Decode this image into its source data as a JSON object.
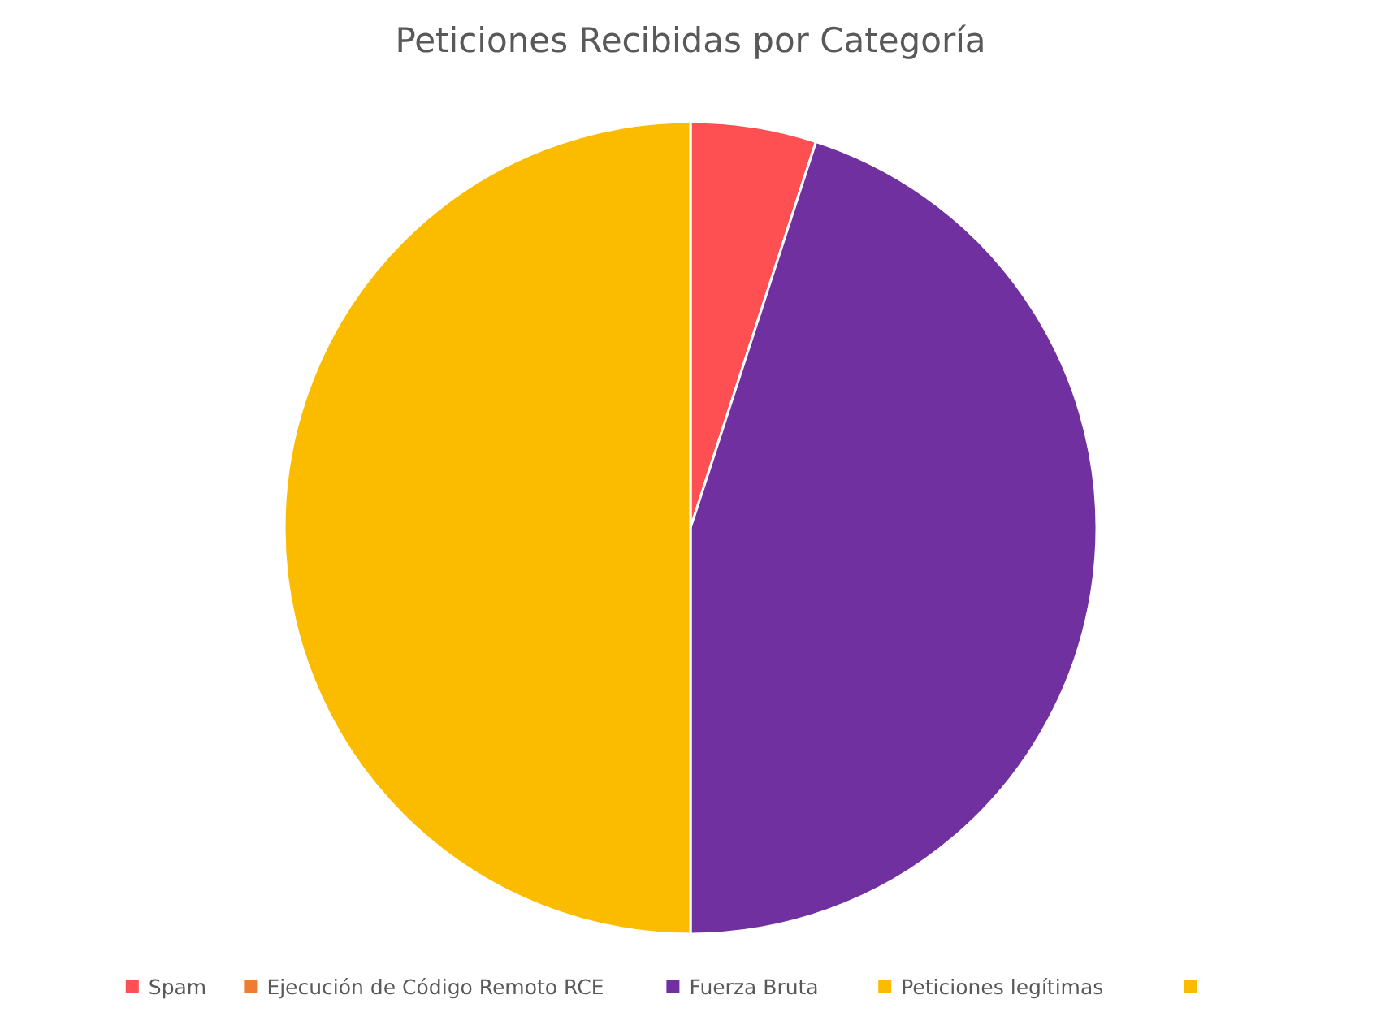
{
  "chart_data": {
    "type": "pie",
    "title": "Peticiones Recibidas por Categoría",
    "categories": [
      "Spam",
      "Ejecución de Código Remoto RCE",
      "Fuerza Bruta",
      "Peticiones legítimas",
      null
    ],
    "values": [
      5,
      0,
      45,
      50,
      0
    ],
    "colors": [
      "#fe4f52",
      "#ed7d31",
      "#7030a0",
      "#fbbc00",
      "#fbbc00"
    ],
    "legend": "bottom"
  }
}
